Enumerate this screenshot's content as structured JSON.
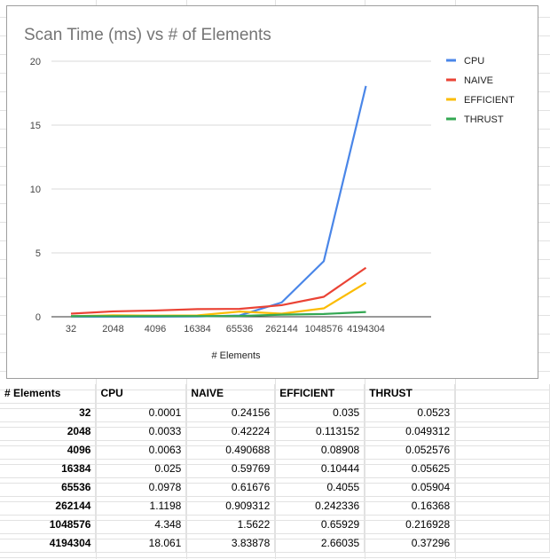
{
  "chart_data": {
    "type": "line",
    "title": "Scan Time (ms) vs # of Elements",
    "xlabel": "# Elements",
    "ylabel": "",
    "ylim": [
      0,
      20
    ],
    "yticks": [
      0,
      5,
      10,
      15,
      20
    ],
    "grid": true,
    "legend_position": "right",
    "categories": [
      "32",
      "2048",
      "4096",
      "16384",
      "65536",
      "262144",
      "1048576",
      "4194304"
    ],
    "series": [
      {
        "name": "CPU",
        "color": "#4a86e8",
        "values": [
          0.0001,
          0.0033,
          0.0063,
          0.025,
          0.0978,
          1.1198,
          4.348,
          18.061
        ]
      },
      {
        "name": "NAIVE",
        "color": "#ea4335",
        "values": [
          0.24156,
          0.42224,
          0.490688,
          0.59769,
          0.61676,
          0.909312,
          1.5622,
          3.83878
        ]
      },
      {
        "name": "EFFICIENT",
        "color": "#fbbc04",
        "values": [
          0.035,
          0.113152,
          0.08908,
          0.10444,
          0.4055,
          0.242336,
          0.65929,
          2.66035
        ]
      },
      {
        "name": "THRUST",
        "color": "#34a853",
        "values": [
          0.0523,
          0.049312,
          0.052576,
          0.05625,
          0.05904,
          0.16368,
          0.216928,
          0.37296
        ]
      }
    ]
  },
  "table": {
    "headers": [
      "# Elements",
      "CPU",
      "NAIVE",
      "EFFICIENT",
      "THRUST"
    ],
    "rows": [
      [
        "32",
        "0.0001",
        "0.24156",
        "0.035",
        "0.0523"
      ],
      [
        "2048",
        "0.0033",
        "0.42224",
        "0.113152",
        "0.049312"
      ],
      [
        "4096",
        "0.0063",
        "0.490688",
        "0.08908",
        "0.052576"
      ],
      [
        "16384",
        "0.025",
        "0.59769",
        "0.10444",
        "0.05625"
      ],
      [
        "65536",
        "0.0978",
        "0.61676",
        "0.4055",
        "0.05904"
      ],
      [
        "262144",
        "1.1198",
        "0.909312",
        "0.242336",
        "0.16368"
      ],
      [
        "1048576",
        "4.348",
        "1.5622",
        "0.65929",
        "0.216928"
      ],
      [
        "4194304",
        "18.061",
        "3.83878",
        "2.66035",
        "0.37296"
      ]
    ]
  }
}
